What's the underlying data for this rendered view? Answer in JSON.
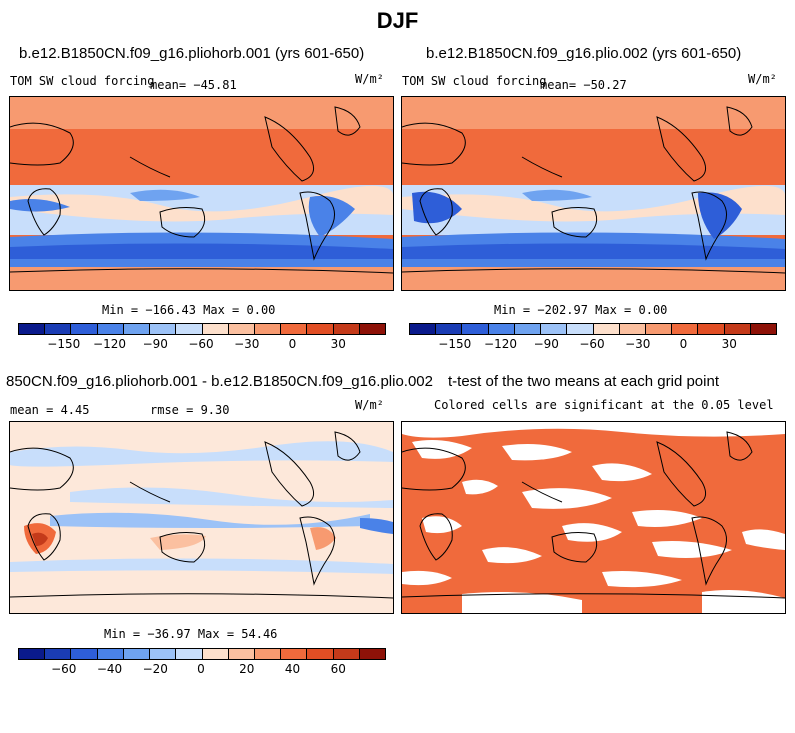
{
  "figure": {
    "title": "DJF"
  },
  "panels": [
    {
      "title": "b.e12.B1850CN.f09_g16.pliohorb.001 (yrs 601-650)",
      "variable": "TOM SW cloud forcing",
      "mean_text": "mean= −45.81",
      "units": "W/m²",
      "stats_text": "Min = −166.43  Max =    0.00",
      "colorbar": "cb1"
    },
    {
      "title": "b.e12.B1850CN.f09_g16.plio.002 (yrs 601-650)",
      "variable": "TOM SW cloud forcing",
      "mean_text": "mean= −50.27",
      "units": "W/m²",
      "stats_text": "Min = −202.97  Max =    0.00",
      "colorbar": "cb1"
    },
    {
      "title": "850CN.f09_g16.pliohorb.001 - b.e12.B1850CN.f09_g16.plio.002",
      "mean_text": "mean =    4.45",
      "rmse_text": "rmse =    9.30",
      "units": "W/m²",
      "stats_text": "Min = −36.97  Max =  54.46",
      "colorbar": "cb2"
    },
    {
      "title": "t-test of the two means at each grid point",
      "subtitle": "Colored cells are significant at the 0.05 level"
    }
  ],
  "colorbars": {
    "cb1": {
      "colors": [
        "#0a1a8c",
        "#1a3cb4",
        "#2e5ed8",
        "#4a82e8",
        "#6fa3f0",
        "#9cc2f7",
        "#c8defb",
        "#fde0cc",
        "#fbc0a0",
        "#f79a70",
        "#f06a3c",
        "#e14e24",
        "#c43a1a",
        "#8e1208"
      ],
      "tick_labels": [
        "−150",
        "−120",
        "−90",
        "−60",
        "−30",
        "0",
        "30"
      ],
      "tick_values": [
        -150,
        -120,
        -90,
        -60,
        -30,
        0,
        30
      ],
      "range": [
        -180,
        60
      ]
    },
    "cb2": {
      "colors": [
        "#0a1a8c",
        "#1a3cb4",
        "#2e5ed8",
        "#4a82e8",
        "#6fa3f0",
        "#9cc2f7",
        "#c8defb",
        "#fde0cc",
        "#fbc0a0",
        "#f79a70",
        "#f06a3c",
        "#e14e24",
        "#c43a1a",
        "#8e1208"
      ],
      "tick_labels": [
        "−60",
        "−40",
        "−20",
        "0",
        "20",
        "40",
        "60"
      ],
      "tick_values": [
        -60,
        -40,
        -20,
        0,
        20,
        40,
        60
      ],
      "range": [
        -80,
        80
      ]
    }
  },
  "map_colors": {
    "ocean_base": "#f06a3c",
    "ocean_mid": "#f79a70",
    "pale": "#fde0cc",
    "light_blue": "#c8defb",
    "mid_blue": "#6fa3f0",
    "deep_blue": "#2e5ed8",
    "diff_base": "#fde8da",
    "ttest_fill": "#f06a3c"
  }
}
